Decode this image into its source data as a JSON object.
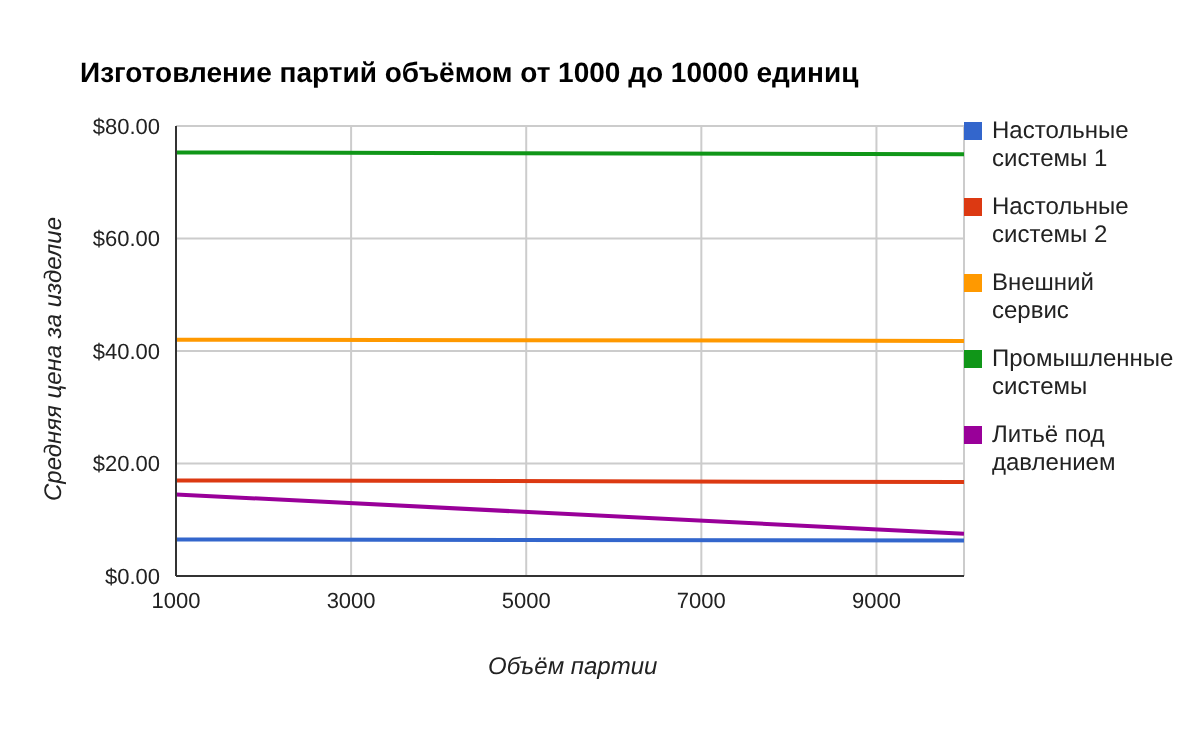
{
  "chart_data": {
    "type": "line",
    "title": "Изготовление партий объёмом от 1000 до 10000 единиц",
    "xlabel": "Объём партии",
    "ylabel": "Средняя цена за изделие",
    "x": [
      1000,
      10000
    ],
    "series": [
      {
        "name": "Настольные системы 1",
        "color": "#3366cc",
        "values": [
          6.5,
          6.3
        ]
      },
      {
        "name": "Настольные системы 2",
        "color": "#dc3912",
        "values": [
          17,
          16.7
        ]
      },
      {
        "name": "Внешний сервис",
        "color": "#ff9900",
        "values": [
          42,
          41.8
        ]
      },
      {
        "name": "Промышленные системы",
        "color": "#109618",
        "values": [
          75.3,
          75
        ]
      },
      {
        "name": "Литьё под давлением",
        "color": "#990099",
        "values": [
          14.5,
          7.5
        ]
      }
    ],
    "xlim": [
      1000,
      10000
    ],
    "xticks": [
      1000,
      3000,
      5000,
      7000,
      9000
    ],
    "ylim": [
      0,
      80
    ],
    "yticks": [
      {
        "value": 0,
        "label": "$0.00"
      },
      {
        "value": 20,
        "label": "$20.00"
      },
      {
        "value": 40,
        "label": "$40.00"
      },
      {
        "value": 60,
        "label": "$60.00"
      },
      {
        "value": 80,
        "label": "$80.00"
      }
    ],
    "grid": true,
    "legend": "right",
    "marker": "none"
  }
}
